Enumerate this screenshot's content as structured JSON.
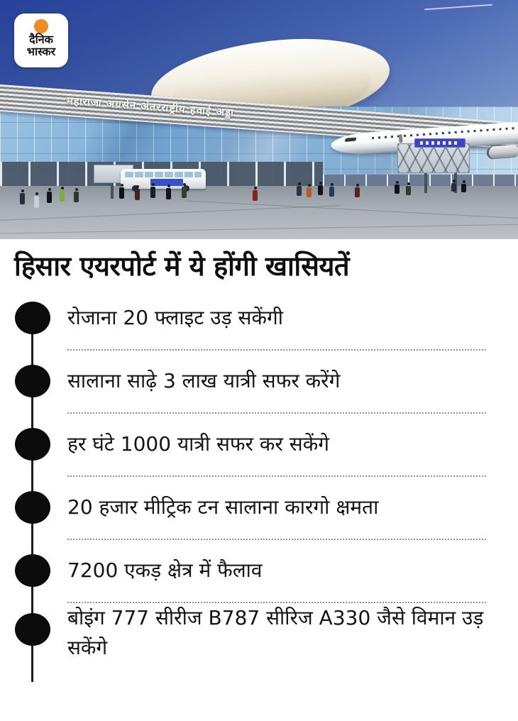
{
  "logo": {
    "brand_line1": "दैनिक",
    "brand_line2": "भास्कर",
    "sun_color": "#f28b1f"
  },
  "photo": {
    "building_sign": "महाराजा अग्रसेन अंतरराष्ट्रीय हवाई अड्डा"
  },
  "headline": "हिसार एयरपोर्ट में ये होंगी खासियतें",
  "features": {
    "bullet_color": "#0b0b0b",
    "items": [
      {
        "text": "रोजाना 20 फ्लाइट उड़ सकेंगी"
      },
      {
        "text": "सालाना साढ़े 3 लाख यात्री सफर करेंगे"
      },
      {
        "text": "हर घंटे 1000 यात्री सफर कर सकेंगे"
      },
      {
        "text": "20 हजार मीट्रिक टन सालाना कारगो क्षमता"
      },
      {
        "text": "7200 एकड़ क्षेत्र में फैलाव"
      },
      {
        "text": "बोइंग 777 सीरीज B787 सीरिज A330 जैसे विमान उड़ सकेंगे"
      }
    ]
  }
}
